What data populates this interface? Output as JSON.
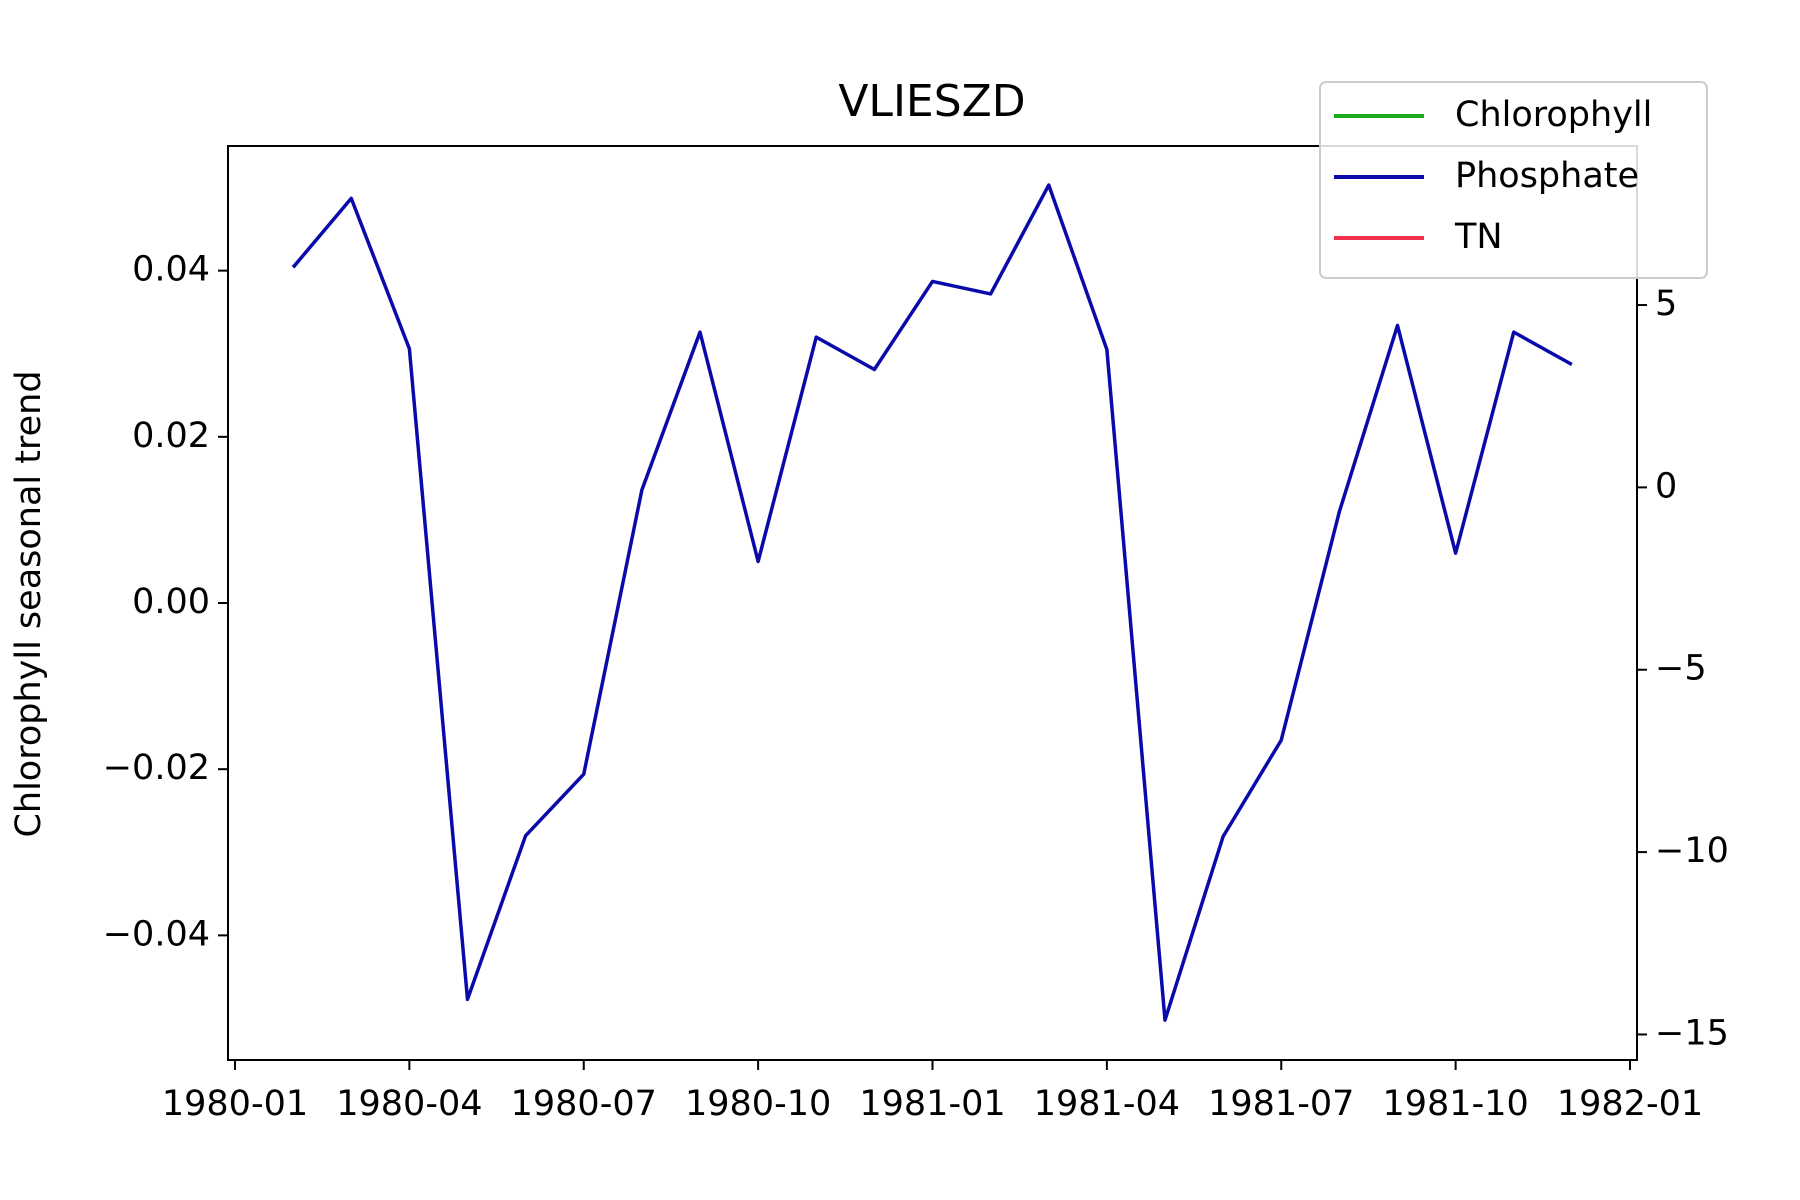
{
  "chart_data": {
    "type": "line",
    "title": "VLIESZD",
    "y_label": "Chlorophyll seasonal trend",
    "x": [
      "1980-02",
      "1980-03",
      "1980-04",
      "1980-05",
      "1980-06",
      "1980-07",
      "1980-08",
      "1980-09",
      "1980-10",
      "1980-11",
      "1980-12",
      "1981-01",
      "1981-02",
      "1981-03",
      "1981-04",
      "1981-05",
      "1981-06",
      "1981-07",
      "1981-08",
      "1981-09",
      "1981-10",
      "1981-11",
      "1981-12"
    ],
    "series": [
      {
        "name": "Chlorophyll",
        "color": "#1aab1a",
        "values": [
          null,
          null,
          null,
          null,
          null,
          null,
          null,
          null,
          null,
          null,
          null,
          null,
          null,
          null,
          null,
          null,
          null,
          null,
          null,
          null,
          null,
          null,
          null
        ]
      },
      {
        "name": "Phosphate",
        "color": "#0a0aaa",
        "values": [
          0.0404,
          0.0487,
          0.0306,
          -0.0477,
          -0.028,
          -0.0206,
          0.0136,
          0.0326,
          0.005,
          0.032,
          0.0281,
          0.0387,
          0.0372,
          0.0503,
          0.0305,
          -0.0502,
          -0.0281,
          -0.0165,
          0.011,
          0.0334,
          0.006,
          0.0326,
          0.0287
        ]
      },
      {
        "name": "TN",
        "color": "#f0304a",
        "values": [
          null,
          null,
          null,
          null,
          null,
          null,
          null,
          null,
          null,
          null,
          null,
          null,
          null,
          null,
          null,
          null,
          null,
          null,
          null,
          null,
          null,
          null,
          null
        ]
      }
    ],
    "xlim": [
      "1980-01",
      "1982-01"
    ],
    "xticks": [
      "1980-01",
      "1980-04",
      "1980-07",
      "1980-10",
      "1981-01",
      "1981-04",
      "1981-07",
      "1981-10",
      "1982-01"
    ],
    "ylim": [
      -0.055,
      0.055
    ],
    "yticks": [
      {
        "value": -0.04,
        "label": "−0.04"
      },
      {
        "value": -0.02,
        "label": "−0.02"
      },
      {
        "value": 0,
        "label": "0.00"
      },
      0.02,
      0.04
    ],
    "y2lim": [
      -15.7,
      9.36
    ],
    "y2ticks": [
      {
        "value": -15,
        "label": "−15"
      },
      {
        "value": -10,
        "label": "−10"
      },
      {
        "value": -5,
        "label": "−5"
      },
      0,
      5
    ],
    "legend": "upper right"
  }
}
